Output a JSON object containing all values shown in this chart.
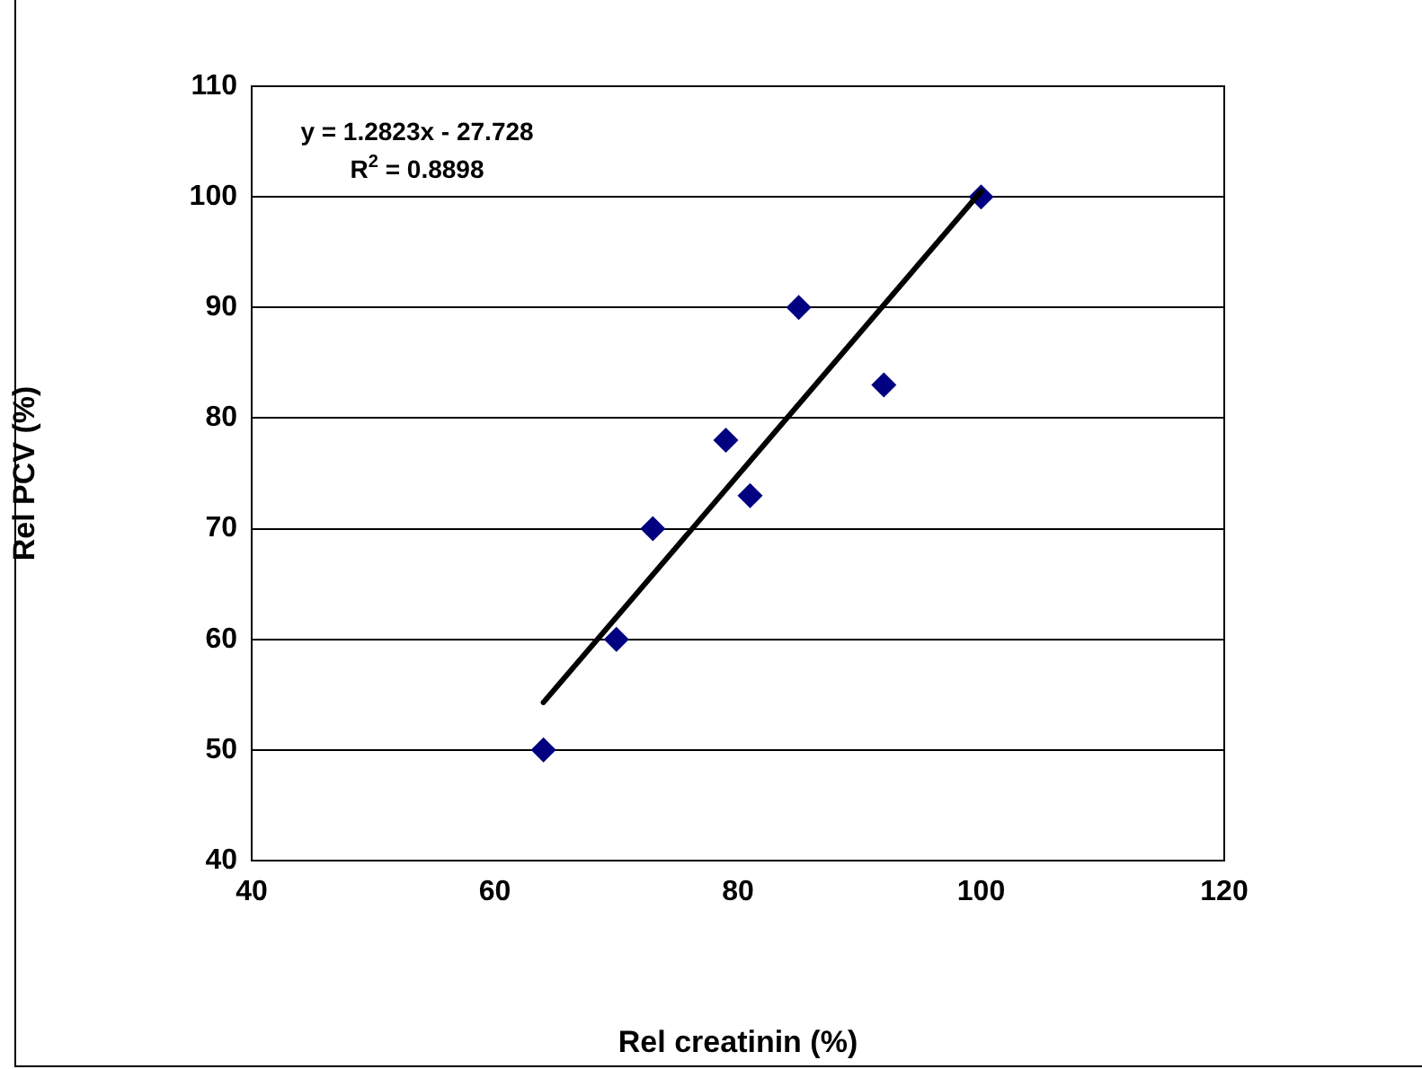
{
  "chart_data": {
    "type": "scatter",
    "xlabel": "Rel creatinin (%)",
    "ylabel": "Rel PCV (%)",
    "xlim": [
      40,
      120
    ],
    "xticks": [
      40,
      60,
      80,
      100,
      120
    ],
    "ylim": [
      40,
      110
    ],
    "yticks": [
      40,
      50,
      60,
      70,
      80,
      90,
      100,
      110
    ],
    "grid": "y",
    "legend": false,
    "annotations": [
      "y = 1.2823x - 27.728",
      "R$^{2}$ = 0.8898"
    ],
    "series": [
      {
        "type": "scatter",
        "color": "#000080",
        "marker": "diamond",
        "x": [
          64,
          70,
          73,
          79,
          81,
          85,
          92,
          100
        ],
        "values": [
          50,
          60,
          70,
          78,
          73,
          90,
          83,
          100
        ]
      },
      {
        "type": "line",
        "color": "#000000",
        "marker": "none",
        "line_style": "solid",
        "x": [
          64,
          100
        ],
        "values": [
          54.3,
          100.5
        ]
      }
    ]
  }
}
